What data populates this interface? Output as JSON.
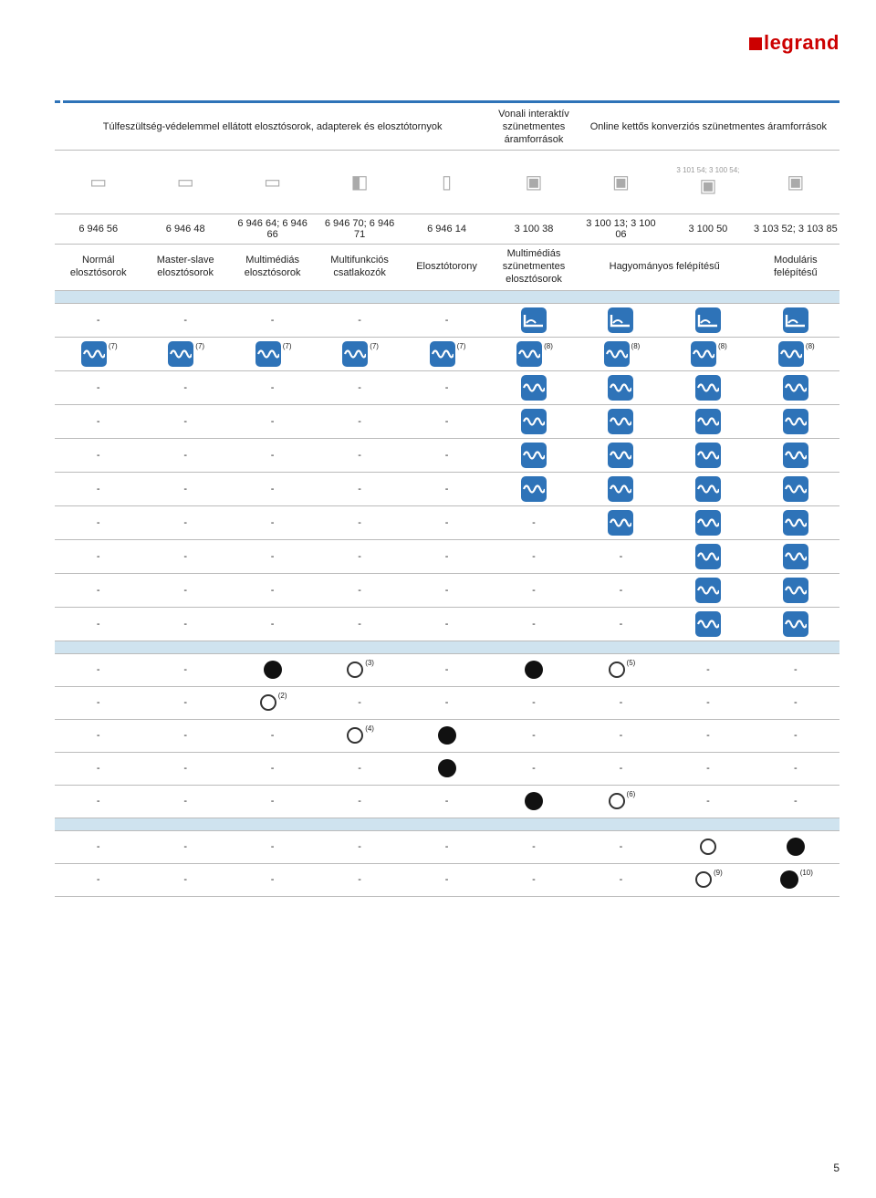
{
  "logo_text": "legrand",
  "page_number": "5",
  "header": {
    "c12345": "Túlfeszültség-védelemmel ellátott elosztósorok, adapterek és elosztótornyok",
    "c6": "Vonali interaktív szünetmentes áramforrások",
    "c789": "Online kettős konverziós szünetmentes áramforrások"
  },
  "extra_code": "3 101 54; 3 100 54;",
  "codes": [
    "6 946 56",
    "6 946 48",
    "6 946 64; 6 946 66",
    "6 946 70; 6 946 71",
    "6 946 14",
    "3 100 38",
    "3 100 13; 3 100 06",
    "3 100 50",
    "3 103 52; 3 103 85"
  ],
  "labels": {
    "c1": "Normál elosztósorok",
    "c2": "Master-slave elosztósorok",
    "c3": "Multimédiás elosztósorok",
    "c4": "Multifunkciós csatlakozók",
    "c5": "Elosztótorony",
    "c6": "Multimédiás szünetmentes elosztósorok",
    "c78": "Hagyományos felépítésű",
    "c9": "Moduláris felépítésű"
  },
  "colors": {
    "accent": "#2e73b8",
    "sep": "#cfe3ef"
  },
  "section1": [
    {
      "cells": [
        "-",
        "-",
        "-",
        "-",
        "-",
        "wave-l",
        "wave-l",
        "wave-l",
        "wave-l"
      ]
    },
    {
      "cells": [
        "wave",
        "wave",
        "wave",
        "wave",
        "wave",
        "wave",
        "wave",
        "wave",
        "wave"
      ],
      "notes": [
        "(7)",
        "(7)",
        "(7)",
        "(7)",
        "(7)",
        "(8)",
        "(8)",
        "(8)",
        "(8)"
      ]
    },
    {
      "cells": [
        "-",
        "-",
        "-",
        "-",
        "-",
        "wave",
        "wave",
        "wave",
        "wave"
      ]
    },
    {
      "cells": [
        "-",
        "-",
        "-",
        "-",
        "-",
        "wave",
        "wave",
        "wave",
        "wave"
      ]
    },
    {
      "cells": [
        "-",
        "-",
        "-",
        "-",
        "-",
        "wave",
        "wave",
        "wave",
        "wave"
      ]
    },
    {
      "cells": [
        "-",
        "-",
        "-",
        "-",
        "-",
        "wave",
        "wave",
        "wave",
        "wave"
      ]
    },
    {
      "cells": [
        "-",
        "-",
        "-",
        "-",
        "-",
        "-",
        "wave",
        "wave",
        "wave"
      ]
    },
    {
      "cells": [
        "-",
        "-",
        "-",
        "-",
        "-",
        "-",
        "-",
        "wave",
        "wave"
      ]
    },
    {
      "cells": [
        "-",
        "-",
        "-",
        "-",
        "-",
        "-",
        "-",
        "wave",
        "wave"
      ]
    },
    {
      "cells": [
        "-",
        "-",
        "-",
        "-",
        "-",
        "-",
        "-",
        "wave",
        "wave"
      ]
    }
  ],
  "section2": [
    {
      "cells": [
        "-",
        "-",
        "filled",
        "open",
        "-",
        "filled",
        "open",
        "-",
        "-"
      ],
      "notes": [
        "",
        "",
        "",
        "(3)",
        "",
        "",
        "(5)",
        "",
        ""
      ]
    },
    {
      "cells": [
        "-",
        "-",
        "open",
        "-",
        "-",
        "-",
        "-",
        "-",
        "-"
      ],
      "notes": [
        "",
        "",
        "(2)",
        "",
        "",
        "",
        "",
        "",
        ""
      ]
    },
    {
      "cells": [
        "-",
        "-",
        "-",
        "open",
        "filled",
        "-",
        "-",
        "-",
        "-"
      ],
      "notes": [
        "",
        "",
        "",
        "(4)",
        "",
        "",
        "",
        "",
        ""
      ]
    },
    {
      "cells": [
        "-",
        "-",
        "-",
        "-",
        "filled",
        "-",
        "-",
        "-",
        "-"
      ]
    },
    {
      "cells": [
        "-",
        "-",
        "-",
        "-",
        "-",
        "filled",
        "open",
        "-",
        "-"
      ],
      "notes": [
        "",
        "",
        "",
        "",
        "",
        "",
        "(6)",
        "",
        ""
      ]
    }
  ],
  "section3": [
    {
      "cells": [
        "-",
        "-",
        "-",
        "-",
        "-",
        "-",
        "-",
        "open",
        "filled"
      ]
    },
    {
      "cells": [
        "-",
        "-",
        "-",
        "-",
        "-",
        "-",
        "-",
        "open",
        "filled"
      ],
      "notes": [
        "",
        "",
        "",
        "",
        "",
        "",
        "",
        "(9)",
        "(10)"
      ]
    }
  ]
}
